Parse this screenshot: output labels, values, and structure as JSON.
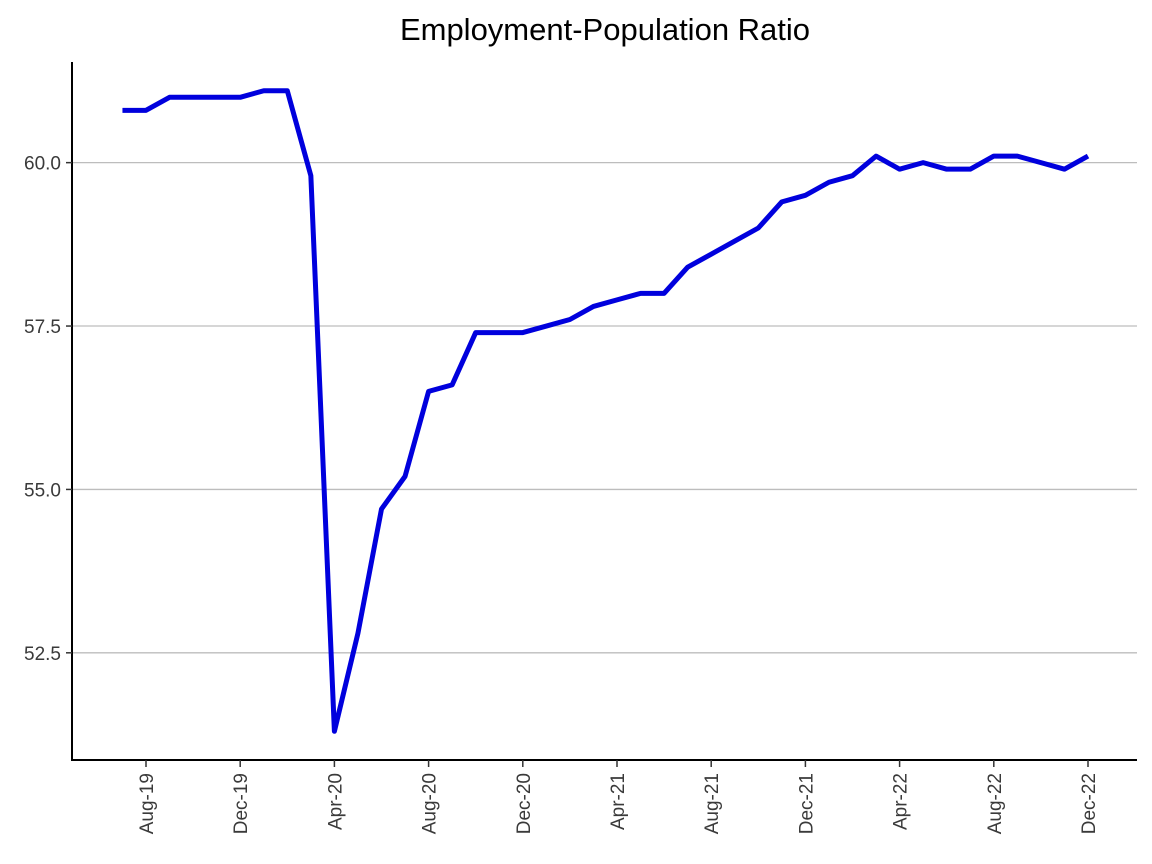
{
  "chart_data": {
    "type": "line",
    "title": "Employment-Population Ratio",
    "xlabel": "",
    "ylabel": "",
    "x": [
      "2019-07",
      "2019-08",
      "2019-09",
      "2019-10",
      "2019-11",
      "2019-12",
      "2020-01",
      "2020-02",
      "2020-03",
      "2020-04",
      "2020-05",
      "2020-06",
      "2020-07",
      "2020-08",
      "2020-09",
      "2020-10",
      "2020-11",
      "2020-12",
      "2021-01",
      "2021-02",
      "2021-03",
      "2021-04",
      "2021-05",
      "2021-06",
      "2021-07",
      "2021-08",
      "2021-09",
      "2021-10",
      "2021-11",
      "2021-12",
      "2022-01",
      "2022-02",
      "2022-03",
      "2022-04",
      "2022-05",
      "2022-06",
      "2022-07",
      "2022-08",
      "2022-09",
      "2022-10",
      "2022-11",
      "2022-12"
    ],
    "series": [
      {
        "values": [
          60.8,
          60.8,
          61.0,
          61.0,
          61.0,
          61.0,
          61.1,
          61.1,
          59.8,
          51.3,
          52.8,
          54.7,
          55.2,
          56.5,
          56.6,
          57.4,
          57.4,
          57.4,
          57.5,
          57.6,
          57.8,
          57.9,
          58.0,
          58.0,
          58.4,
          58.6,
          58.8,
          59.0,
          59.4,
          59.5,
          59.7,
          59.8,
          60.1,
          59.9,
          60.0,
          59.9,
          59.9,
          60.1,
          60.1,
          60.0,
          59.9,
          60.1
        ],
        "color": "#0000dd"
      }
    ],
    "x_tick_labels": [
      {
        "date": "2019-08",
        "label": "Aug-19"
      },
      {
        "date": "2019-12",
        "label": "Dec-19"
      },
      {
        "date": "2020-04",
        "label": "Apr-20"
      },
      {
        "date": "2020-08",
        "label": "Aug-20"
      },
      {
        "date": "2020-12",
        "label": "Dec-20"
      },
      {
        "date": "2021-04",
        "label": "Apr-21"
      },
      {
        "date": "2021-08",
        "label": "Aug-21"
      },
      {
        "date": "2021-12",
        "label": "Dec-21"
      },
      {
        "date": "2022-04",
        "label": "Apr-22"
      },
      {
        "date": "2022-08",
        "label": "Aug-22"
      },
      {
        "date": "2022-12",
        "label": "Dec-22"
      }
    ],
    "y_ticks": [
      52.5,
      55.0,
      57.5,
      60.0
    ],
    "y_tick_labels": [
      "52.5",
      "55.0",
      "57.5",
      "60.0"
    ],
    "ylim": [
      50.86,
      61.54
    ],
    "xlim": [
      "2019-06",
      "2023-01"
    ],
    "grid": {
      "horizontal": true,
      "vertical": false,
      "color": "#bdbdbd"
    },
    "legend": "none"
  }
}
